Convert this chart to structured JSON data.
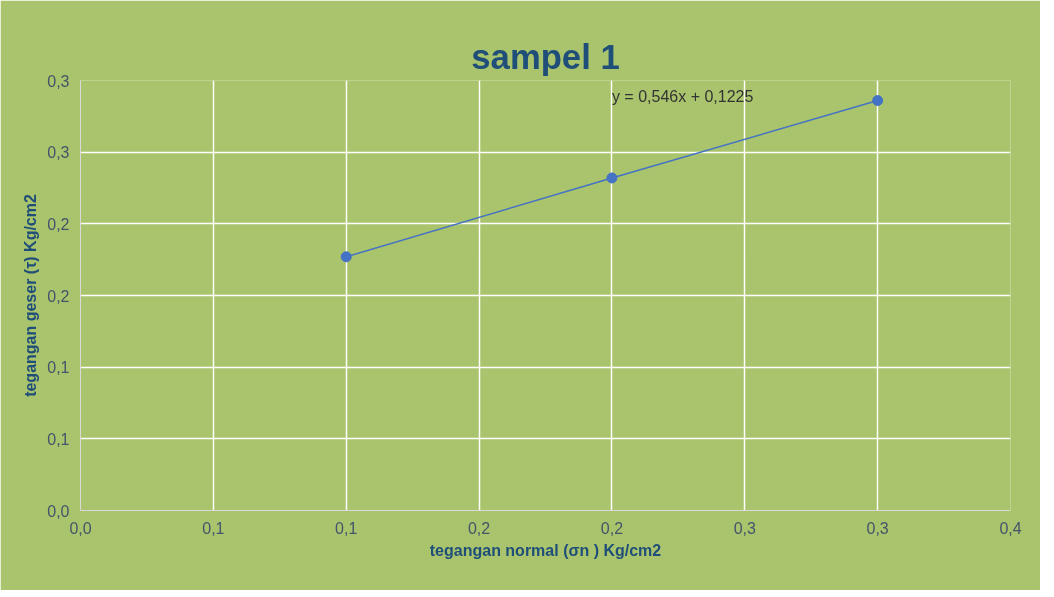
{
  "chart_data": {
    "type": "line",
    "title": "sampel 1",
    "xlabel": "tegangan normal (σn ) Kg/cm2",
    "ylabel": "tegangan geser (τ) Kg/cm2",
    "x": [
      0.1,
      0.2,
      0.3
    ],
    "series": [
      {
        "color": "#4472c4",
        "values": [
          0.177,
          0.232,
          0.286
        ]
      }
    ],
    "xlim": [
      0,
      0.35
    ],
    "ylim": [
      0,
      0.3
    ],
    "xticks": [
      {
        "value": 0,
        "label": "0,0"
      },
      {
        "value": 0.05,
        "label": "0,1"
      },
      {
        "value": 0.1,
        "label": "0,1"
      },
      {
        "value": 0.15,
        "label": "0,2"
      },
      {
        "value": 0.2,
        "label": "0,2"
      },
      {
        "value": 0.25,
        "label": "0,3"
      },
      {
        "value": 0.3,
        "label": "0,3"
      },
      {
        "value": 0.35,
        "label": "0,4"
      }
    ],
    "yticks": [
      {
        "value": 0,
        "label": "0,0"
      },
      {
        "value": 0.05,
        "label": "0,1"
      },
      {
        "value": 0.1,
        "label": "0,1"
      },
      {
        "value": 0.15,
        "label": "0,2"
      },
      {
        "value": 0.2,
        "label": "0,2"
      },
      {
        "value": 0.25,
        "label": "0,3"
      },
      {
        "value": 0.3,
        "label": "0,3"
      }
    ],
    "annotations": [
      "y = 0,546x + 0,1225"
    ],
    "grid": true,
    "marker": "circle",
    "line_style": "solid"
  }
}
